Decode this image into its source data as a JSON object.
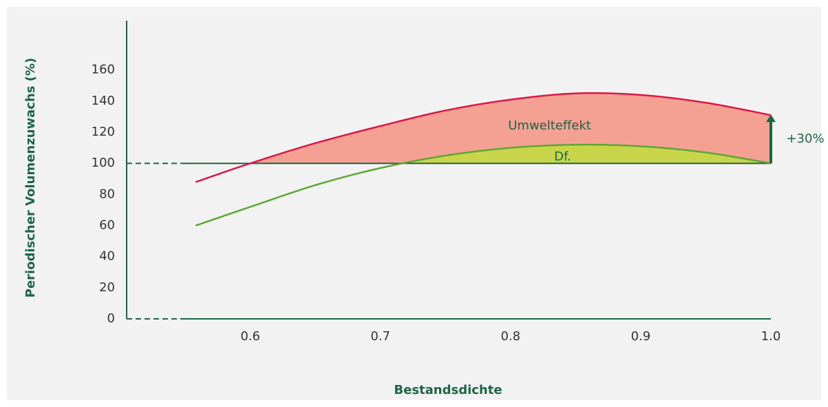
{
  "chart_data": {
    "type": "line",
    "xlabel": "Bestandsdichte",
    "ylabel": "Periodischer Volumenzuwachs (%)",
    "x": [
      0.558,
      0.6,
      0.65,
      0.7,
      0.75,
      0.8,
      0.85,
      0.9,
      0.95,
      1.0
    ],
    "series": [
      {
        "color": "#dc1746",
        "fill": "#f4a093",
        "values": [
          88,
          100,
          113,
          124,
          134,
          141,
          145,
          144,
          139,
          131
        ]
      },
      {
        "color": "#5aa832",
        "fill": "#c8d54a",
        "values": [
          60,
          72,
          86,
          97,
          105,
          110,
          112,
          111,
          107,
          100
        ]
      }
    ],
    "reference_line": 100,
    "annotations": [
      {
        "text": "Umwelteffekt",
        "x": 0.83,
        "y": 124
      },
      {
        "text": "Df.",
        "x": 0.84,
        "y": 104
      },
      {
        "text": "+30%"
      }
    ],
    "xlim": [
      0.505,
      1.0
    ],
    "xticks": [
      0.6,
      0.7,
      0.8,
      0.9,
      {
        "value": 1.0,
        "label": "1.0"
      }
    ],
    "ylim": [
      0,
      190
    ],
    "yticks": [
      0,
      20,
      40,
      60,
      80,
      100,
      120,
      140,
      160
    ],
    "grid": false,
    "axis_color": "#1a6645"
  }
}
